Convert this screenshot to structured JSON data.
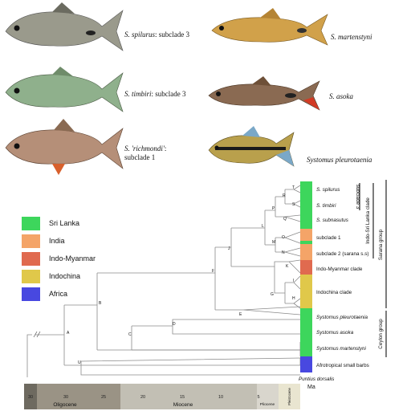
{
  "photos": [
    {
      "species": "S. spilurus",
      "suffix": ": subclade 3",
      "suffix2": ""
    },
    {
      "species": "S. martenstyni",
      "suffix": "",
      "suffix2": ""
    },
    {
      "species": "S. timbiri",
      "suffix": ": subclade 3",
      "suffix2": ""
    },
    {
      "species": "S. asoka",
      "suffix": "",
      "suffix2": ""
    },
    {
      "species": "S. 'richmondi'",
      "suffix": ":",
      "suffix2": "subclade 1"
    },
    {
      "species": "Systomus pleurotaenia",
      "suffix": "",
      "suffix2": ""
    }
  ],
  "legend": [
    {
      "label": "Sri Lanka",
      "color": "#3dd65c"
    },
    {
      "label": "India",
      "color": "#f4a468"
    },
    {
      "label": "Indo-Myanmar",
      "color": "#e06a4f"
    },
    {
      "label": "Indochina",
      "color": "#e0c84a"
    },
    {
      "label": "Africa",
      "color": "#4848e0"
    }
  ],
  "tree": {
    "node_labels": [
      "A",
      "B",
      "C",
      "D",
      "E",
      "F",
      "G",
      "H",
      "I",
      "J",
      "K",
      "L",
      "M",
      "N",
      "O",
      "P",
      "Q",
      "R",
      "S",
      "T",
      "U"
    ],
    "tips": [
      {
        "label": "S. spilurus",
        "italic": true
      },
      {
        "label": "S. timbiri",
        "italic": true
      },
      {
        "label": "S. subnasutus",
        "italic": true
      },
      {
        "label": "subclade 1",
        "italic": false
      },
      {
        "label": "subclade 2 (sarana s.s)",
        "italic": false
      },
      {
        "label": "Indo-Myanmar clade",
        "italic": false
      },
      {
        "label": "Indochina clade",
        "italic": false
      },
      {
        "label": "Systomus pleurotaenia",
        "italic": true
      },
      {
        "label": "Systomus asoka",
        "italic": true
      },
      {
        "label": "Systomus martenstyni",
        "italic": true
      },
      {
        "label": "Afrotropical small barbs",
        "italic": false
      },
      {
        "label": "Puntius dorsalis",
        "italic": true
      }
    ],
    "bar_segments": [
      "#3dd65c",
      "#3dd65c",
      "#3dd65c",
      "#3dd65c",
      "#f4a468",
      "#3dd65c",
      "#f4a468",
      "#e06a4f",
      "#e0c84a",
      "#3dd65c",
      "#3dd65c",
      "#3dd65c",
      "#4848e0"
    ],
    "groups": [
      "subclade 3",
      "Indo-Sri Lanka clade",
      "Sarana group",
      "Ceylon group"
    ]
  },
  "timescale": {
    "ticks": [
      "30",
      "25",
      "20",
      "15",
      "10",
      "5"
    ],
    "epochs": [
      "Oligocene",
      "Miocene",
      "Pliocene",
      "Pleistocene"
    ],
    "unit": "Ma"
  }
}
